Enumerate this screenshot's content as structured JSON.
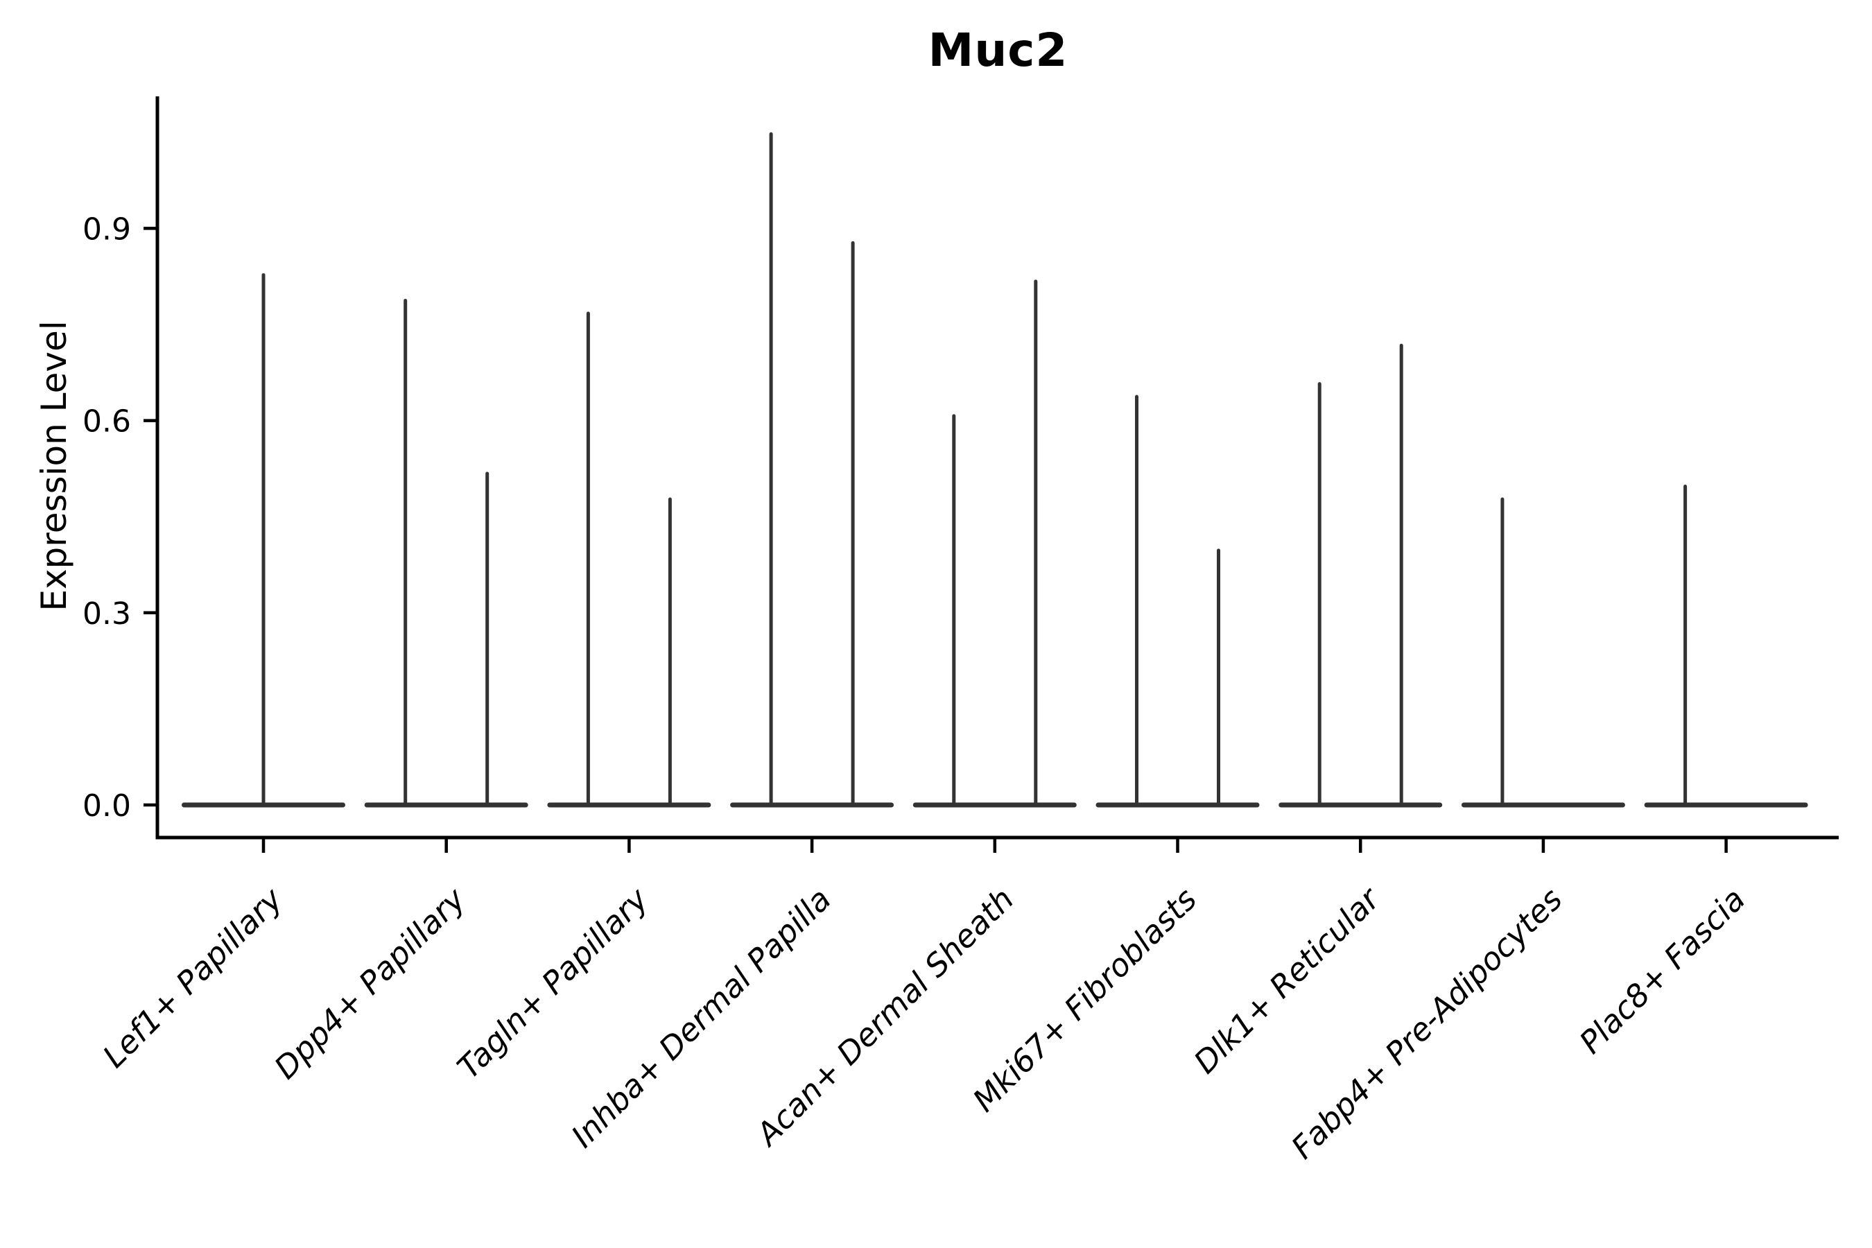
{
  "chart_data": {
    "type": "violin",
    "title": "Muc2",
    "ylabel": "Expression Level",
    "xlabel": "",
    "grid": false,
    "legend": false,
    "ylim": [
      -0.05,
      1.11
    ],
    "yticks": [
      {
        "label": "0.0",
        "value": 0.0
      },
      {
        "label": "0.3",
        "value": 0.3
      },
      {
        "label": "0.6",
        "value": 0.6
      },
      {
        "label": "0.9",
        "value": 0.9
      }
    ],
    "style": {
      "violin_color": "#333333",
      "axis_color": "#000000",
      "background": "#ffffff"
    },
    "categories": [
      {
        "label": "Lef1+ Papillary",
        "spikes": [
          {
            "position": "center",
            "value": 0.83
          }
        ]
      },
      {
        "label": "Dpp4+ Papillary",
        "spikes": [
          {
            "position": "left",
            "value": 0.79
          },
          {
            "position": "right",
            "value": 0.52
          }
        ]
      },
      {
        "label": "Tagln+ Papillary",
        "spikes": [
          {
            "position": "left",
            "value": 0.77
          },
          {
            "position": "right",
            "value": 0.48
          }
        ]
      },
      {
        "label": "Inhba+ Dermal Papilla",
        "spikes": [
          {
            "position": "left",
            "value": 1.05
          },
          {
            "position": "right",
            "value": 0.88
          }
        ]
      },
      {
        "label": "Acan+ Dermal Sheath",
        "spikes": [
          {
            "position": "left",
            "value": 0.61
          },
          {
            "position": "right",
            "value": 0.82
          }
        ]
      },
      {
        "label": "Mki67+ Fibroblasts",
        "spikes": [
          {
            "position": "left",
            "value": 0.64
          },
          {
            "position": "right",
            "value": 0.4
          }
        ]
      },
      {
        "label": "Dlk1+ Reticular",
        "spikes": [
          {
            "position": "left",
            "value": 0.66
          },
          {
            "position": "right",
            "value": 0.72
          }
        ]
      },
      {
        "label": "Fabp4+ Pre-Adipocytes",
        "spikes": [
          {
            "position": "left",
            "value": 0.48
          }
        ]
      },
      {
        "label": "Plac8+ Fascia",
        "spikes": [
          {
            "position": "left",
            "value": 0.5
          }
        ]
      }
    ]
  }
}
